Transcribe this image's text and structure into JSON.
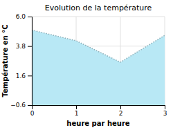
{
  "chart_data": {
    "type": "area",
    "title": "Evolution de la température",
    "x_label": "heure par heure",
    "y_label": "Température en °C",
    "x": [
      0,
      1,
      2,
      3
    ],
    "values": [
      5.0,
      4.2,
      2.6,
      4.6
    ],
    "color": "#b8e8f5",
    "line_style": "dotted",
    "xlim": [
      0,
      3
    ],
    "ylim": [
      -0.6,
      6.0
    ],
    "xticks": [
      0,
      1,
      2,
      3
    ],
    "yticks": [
      {
        "value": -0.6,
        "label": "−0.6"
      },
      1.6,
      3.8,
      {
        "value": 6.0,
        "label": "6.0"
      }
    ],
    "grid": true
  }
}
